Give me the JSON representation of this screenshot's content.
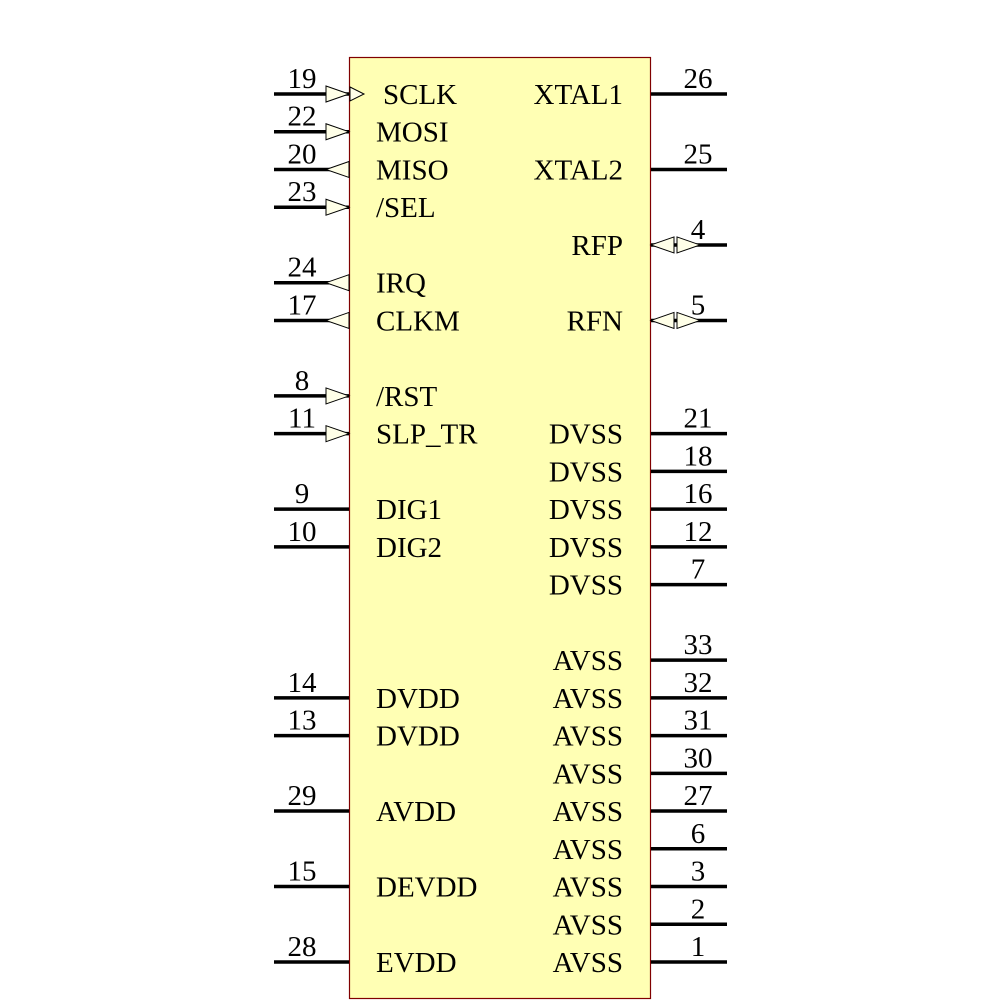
{
  "component": {
    "body_fill": "#ffffb4",
    "body_stroke": "#800000",
    "left_pins": [
      {
        "slot": 0,
        "number": "19",
        "name": "SCLK",
        "type": "input",
        "clock": true
      },
      {
        "slot": 1,
        "number": "22",
        "name": "MOSI",
        "type": "input"
      },
      {
        "slot": 2,
        "number": "20",
        "name": "MISO",
        "type": "output"
      },
      {
        "slot": 3,
        "number": "23",
        "name": "/SEL",
        "type": "input"
      },
      {
        "slot": 5,
        "number": "24",
        "name": "IRQ",
        "type": "output"
      },
      {
        "slot": 6,
        "number": "17",
        "name": "CLKM",
        "type": "output"
      },
      {
        "slot": 8,
        "number": "8",
        "name": "/RST",
        "type": "input"
      },
      {
        "slot": 9,
        "number": "11",
        "name": "SLP_TR",
        "type": "input"
      },
      {
        "slot": 11,
        "number": "9",
        "name": "DIG1",
        "type": "passive"
      },
      {
        "slot": 12,
        "number": "10",
        "name": "DIG2",
        "type": "passive"
      },
      {
        "slot": 16,
        "number": "14",
        "name": "DVDD",
        "type": "passive"
      },
      {
        "slot": 17,
        "number": "13",
        "name": "DVDD",
        "type": "passive"
      },
      {
        "slot": 19,
        "number": "29",
        "name": "AVDD",
        "type": "passive"
      },
      {
        "slot": 21,
        "number": "15",
        "name": "DEVDD",
        "type": "passive"
      },
      {
        "slot": 23,
        "number": "28",
        "name": "EVDD",
        "type": "passive"
      }
    ],
    "right_pins": [
      {
        "slot": 0,
        "number": "26",
        "name": "XTAL1",
        "type": "passive"
      },
      {
        "slot": 2,
        "number": "25",
        "name": "XTAL2",
        "type": "passive"
      },
      {
        "slot": 4,
        "number": "4",
        "name": "RFP",
        "type": "bidirectional"
      },
      {
        "slot": 6,
        "number": "5",
        "name": "RFN",
        "type": "bidirectional"
      },
      {
        "slot": 9,
        "number": "21",
        "name": "DVSS",
        "type": "passive"
      },
      {
        "slot": 10,
        "number": "18",
        "name": "DVSS",
        "type": "passive"
      },
      {
        "slot": 11,
        "number": "16",
        "name": "DVSS",
        "type": "passive"
      },
      {
        "slot": 12,
        "number": "12",
        "name": "DVSS",
        "type": "passive"
      },
      {
        "slot": 13,
        "number": "7",
        "name": "DVSS",
        "type": "passive"
      },
      {
        "slot": 15,
        "number": "33",
        "name": "AVSS",
        "type": "passive"
      },
      {
        "slot": 16,
        "number": "32",
        "name": "AVSS",
        "type": "passive"
      },
      {
        "slot": 17,
        "number": "31",
        "name": "AVSS",
        "type": "passive"
      },
      {
        "slot": 18,
        "number": "30",
        "name": "AVSS",
        "type": "passive"
      },
      {
        "slot": 19,
        "number": "27",
        "name": "AVSS",
        "type": "passive"
      },
      {
        "slot": 20,
        "number": "6",
        "name": "AVSS",
        "type": "passive"
      },
      {
        "slot": 21,
        "number": "3",
        "name": "AVSS",
        "type": "passive"
      },
      {
        "slot": 22,
        "number": "2",
        "name": "AVSS",
        "type": "passive"
      },
      {
        "slot": 23,
        "number": "1",
        "name": "AVSS",
        "type": "passive"
      }
    ]
  }
}
